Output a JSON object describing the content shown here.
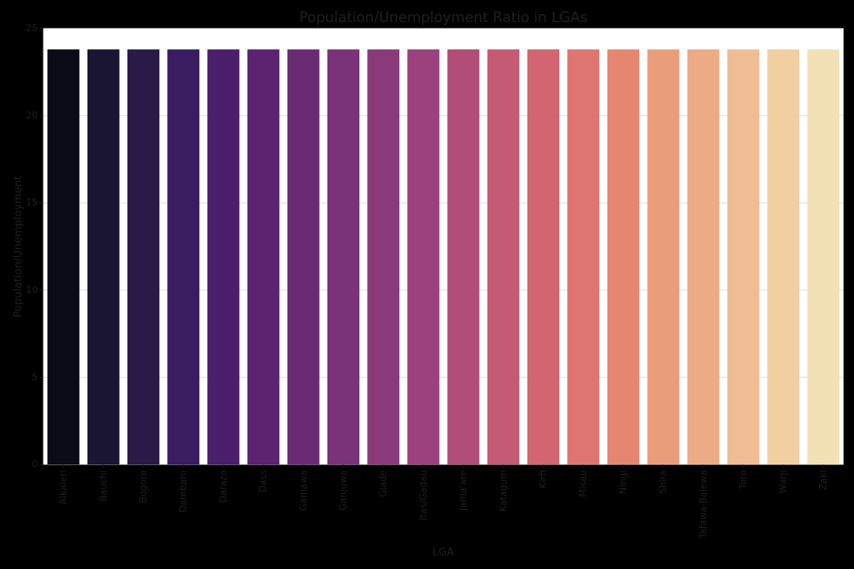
{
  "chart_data": {
    "type": "bar",
    "title": "Population/Unemployment Ratio in LGAs",
    "xlabel": "LGA",
    "ylabel": "Population/Unemployment",
    "categories": [
      "Alkaleri",
      "Bauchi",
      "Bogoro",
      "Dambam",
      "Darazo",
      "Dass",
      "Gamawa",
      "Ganjuwa",
      "Giade",
      "Itas/Gadau",
      "Jama'are",
      "Katagum",
      "Kirfi",
      "Misau",
      "Ningi",
      "Shira",
      "Tafawa-Balewa",
      "Toro",
      "Warji",
      "Zaki"
    ],
    "values": [
      23.8,
      23.8,
      23.8,
      23.8,
      23.8,
      23.8,
      23.8,
      23.8,
      23.8,
      23.8,
      23.8,
      23.8,
      23.8,
      23.8,
      23.8,
      23.8,
      23.8,
      23.8,
      23.8,
      23.8
    ],
    "ylim": [
      0,
      25
    ],
    "yticks": [
      0,
      5,
      10,
      15,
      20,
      25
    ],
    "grid": "horizontal",
    "colors": [
      "#0b0b18",
      "#191532",
      "#2a1a48",
      "#3a1d60",
      "#4b1f6b",
      "#5b2370",
      "#6b2b74",
      "#7a3278",
      "#8a3a7b",
      "#9b417d",
      "#b14d77",
      "#c45a73",
      "#d2656f",
      "#df7570",
      "#e48670",
      "#ea9d7b",
      "#ecab84",
      "#efbd93",
      "#f1cfa0",
      "#f2e1b4"
    ]
  }
}
